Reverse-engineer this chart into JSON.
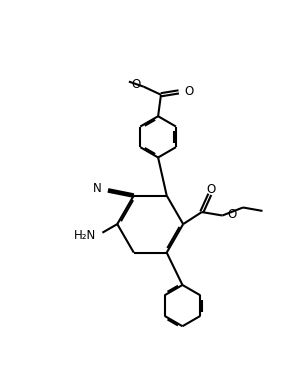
{
  "bg_color": "#ffffff",
  "line_color": "#000000",
  "line_width": 1.5,
  "figsize": [
    2.89,
    3.68
  ],
  "dpi": 100,
  "xlim": [
    0,
    10
  ],
  "ylim": [
    0,
    12.8
  ]
}
